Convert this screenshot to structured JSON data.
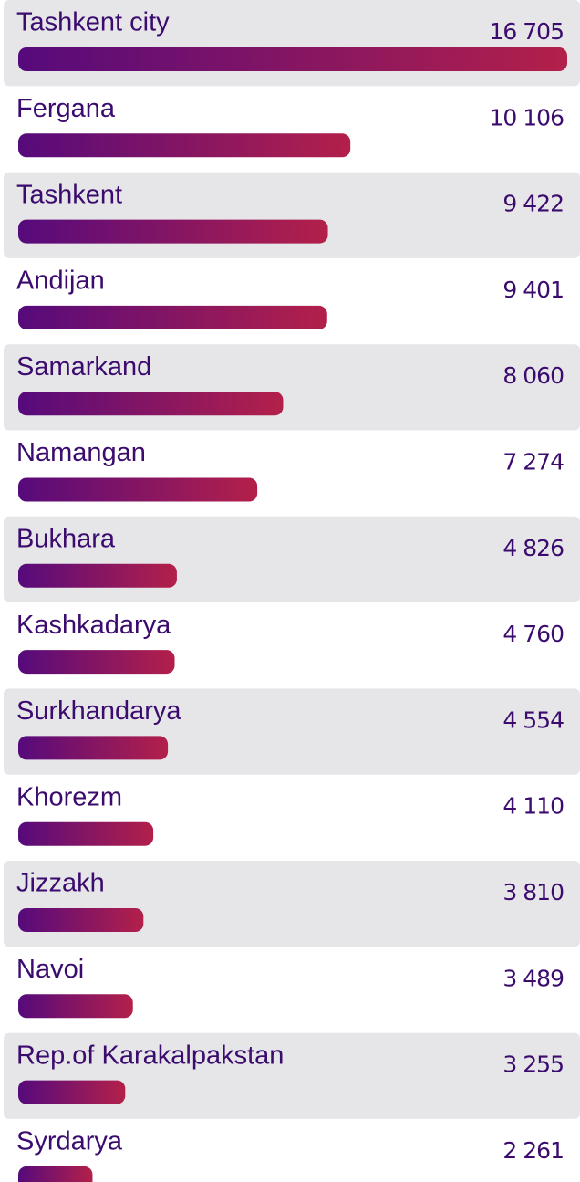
{
  "chart_data": {
    "type": "bar",
    "categories": [
      "Tashkent city",
      "Fergana",
      "Tashkent",
      "Andijan",
      "Samarkand",
      "Namangan",
      "Bukhara",
      "Kashkadarya",
      "Surkhandarya",
      "Khorezm",
      "Jizzakh",
      "Navoi",
      "Rep.of Karakalpakstan",
      "Syrdarya"
    ],
    "values": [
      16705,
      10106,
      9422,
      9401,
      8060,
      7274,
      4826,
      4760,
      4554,
      4110,
      3810,
      3489,
      3255,
      2261
    ],
    "value_labels": [
      "16 705",
      "10 106",
      "9 422",
      "9 401",
      "8 060",
      "7 274",
      "4 826",
      "4 760",
      "4 554",
      "4 110",
      "3 810",
      "3 489",
      "3 255",
      "2 261"
    ],
    "xlim": [
      0,
      16705
    ],
    "colors": [
      "#560a7c",
      "#b3204a"
    ],
    "band_color": "#e6e6e9"
  }
}
